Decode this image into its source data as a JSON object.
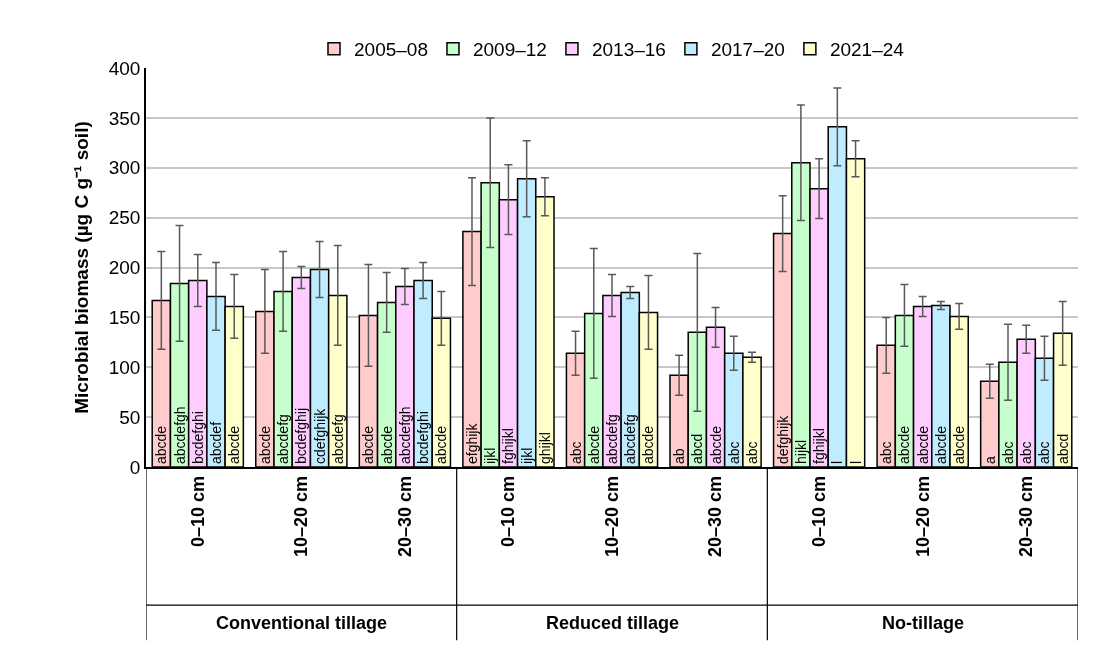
{
  "chart_data": {
    "type": "bar",
    "ylabel": "Microbial biomass (µg C g⁻¹ soil)",
    "categories": [
      "0–10 cm",
      "10–20 cm",
      "20–30 cm",
      "0–10 cm",
      "10–20 cm",
      "20–30 cm",
      "0–10 cm",
      "10–20 cm",
      "20–30 cm"
    ],
    "annotations": [
      "Conventional tillage",
      "Reduced tillage",
      "No-tillage"
    ],
    "ylim": [
      0,
      400
    ],
    "yticks": [
      0,
      50,
      100,
      150,
      200,
      250,
      300,
      350,
      400
    ],
    "grid": "y",
    "legend": "top",
    "series": [
      {
        "name": "2005–08",
        "color": "#ffcccc",
        "values": [
          167,
          156,
          152,
          236,
          114,
          92,
          234,
          122,
          86
        ],
        "errors": [
          49,
          42,
          51,
          54,
          22,
          20,
          38,
          28,
          17
        ],
        "value_labels": [
          "abcde",
          "abcde",
          "abcde",
          "efghijk",
          "abc",
          "ab",
          "defghijk",
          "abc",
          "a"
        ]
      },
      {
        "name": "2009–12",
        "color": "#c6ffcc",
        "values": [
          184,
          176,
          165,
          285,
          154,
          135,
          305,
          152,
          105
        ],
        "errors": [
          58,
          40,
          30,
          65,
          65,
          79,
          58,
          31,
          38
        ],
        "value_labels": [
          "abcdefgh",
          "abcdefg",
          "abcde",
          "ijkl",
          "abcde",
          "abcd",
          "hijkl",
          "abcde",
          "abc"
        ]
      },
      {
        "name": "2013–16",
        "color": "#ffccff",
        "values": [
          187,
          190,
          181,
          268,
          172,
          140,
          279,
          161,
          128
        ],
        "errors": [
          26,
          11,
          18,
          35,
          21,
          20,
          30,
          10,
          14
        ],
        "value_labels": [
          "bcdefghi",
          "bcdefghij",
          "abcdefgh",
          "fghijkl",
          "abcdefg",
          "abcde",
          "fghijkl",
          "abcde",
          "abc"
        ]
      },
      {
        "name": "2017–20",
        "color": "#c0ecff",
        "values": [
          171,
          198,
          187,
          289,
          175,
          114,
          341,
          162,
          109
        ],
        "errors": [
          34,
          28,
          18,
          38,
          6,
          17,
          39,
          4,
          22
        ],
        "value_labels": [
          "abcdef",
          "cdefghijk",
          "bcdefghi",
          "ijkl",
          "abcdefg",
          "abc",
          "l",
          "abcde",
          "abc"
        ]
      },
      {
        "name": "2021–24",
        "color": "#ffffcc",
        "values": [
          161,
          172,
          149,
          271,
          155,
          110,
          309,
          151,
          134
        ],
        "errors": [
          32,
          50,
          27,
          19,
          37,
          5,
          18,
          13,
          32
        ],
        "value_labels": [
          "abcde",
          "abcdefg",
          "abcde",
          "ghijkl",
          "abcde",
          "abc",
          "l",
          "abcde",
          "abcd"
        ]
      }
    ]
  }
}
